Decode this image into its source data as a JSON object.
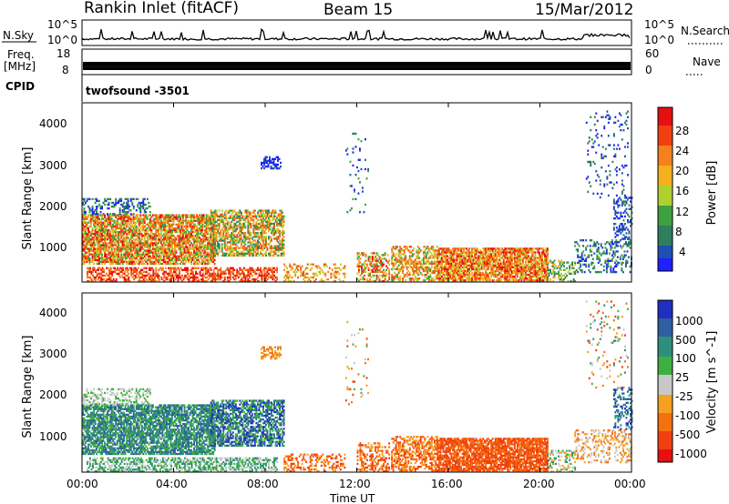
{
  "header": {
    "title": "Rankin Inlet (fitACF)",
    "beam": "Beam 15",
    "date": "15/Mar/2012"
  },
  "strip_noise": {
    "left_label": "N.Sky",
    "right_label": "N.Search",
    "left_ticks": [
      "10^5",
      "10^0"
    ],
    "right_ticks": [
      "10^5",
      "10^0"
    ]
  },
  "strip_freq": {
    "left_label_line1": "Freq.",
    "left_label_line2": "[MHz]",
    "right_label": "Nave",
    "left_ticks": [
      "18",
      "8"
    ],
    "right_ticks": [
      "60",
      "0"
    ]
  },
  "strip_cpid": {
    "label": "CPID",
    "value": "twofsound -3501"
  },
  "colors": {
    "power_scale": [
      "#1f1fff",
      "#1f4fb0",
      "#2f7f5f",
      "#3fa03f",
      "#b0d030",
      "#f5b020",
      "#f58020",
      "#f05010",
      "#e61010"
    ],
    "velocity_scale": [
      "#e61010",
      "#f04010",
      "#f57010",
      "#f5a020",
      "#c8c8c8",
      "#3fb03f",
      "#2f8f7f",
      "#2f5fa0",
      "#1f2fbf"
    ]
  },
  "chart_data": [
    {
      "type": "heatmap",
      "name": "power-panel",
      "ylabel": "Slant Range [km]",
      "ylim": [
        180,
        4500
      ],
      "y_ticks": [
        "4000",
        "3000",
        "2000",
        "1000"
      ],
      "x_ticks": [
        "00:00",
        "04:00",
        "08:00",
        "12:00",
        "16:00",
        "20:00",
        "00:00"
      ],
      "colorbar": {
        "label": "Power [dB]",
        "ticks": [
          "28",
          "24",
          "20",
          "16",
          "12",
          "8",
          "4"
        ]
      }
    },
    {
      "type": "heatmap",
      "name": "velocity-panel",
      "ylabel": "Slant Range [km]",
      "xlabel": "Time UT",
      "ylim": [
        180,
        4500
      ],
      "y_ticks": [
        "4000",
        "3000",
        "2000",
        "1000"
      ],
      "x_ticks": [
        "00:00",
        "04:00",
        "08:00",
        "12:00",
        "16:00",
        "20:00",
        "00:00"
      ],
      "colorbar": {
        "label": "Velocity [m s^-1]",
        "ticks": [
          "1000",
          "500",
          "100",
          "25",
          "-25",
          "-100",
          "-500",
          "-1000"
        ]
      }
    }
  ]
}
